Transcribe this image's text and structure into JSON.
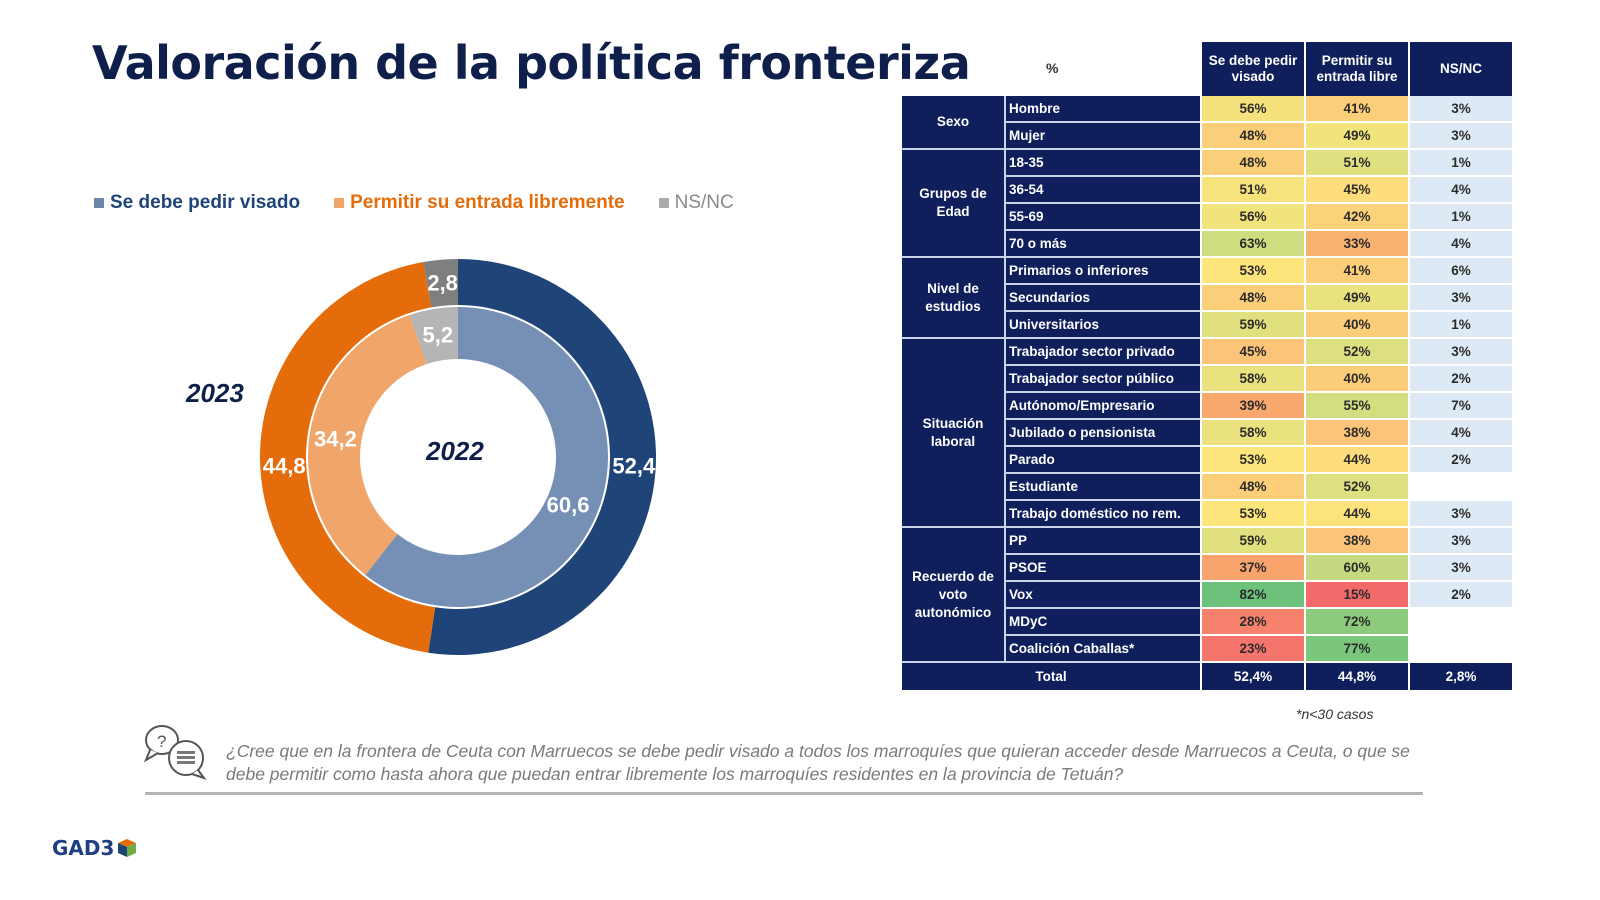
{
  "page": {
    "title": "Valoración de la política fronteriza",
    "footnote": "*n<30 casos",
    "question": "¿Cree que en la frontera de Ceuta con Marruecos se debe pedir visado a todos los marroquíes que quieran acceder desde Marruecos a Ceuta, o que se debe permitir como hasta ahora que puedan entrar libremente los marroquíes residentes en la provincia de Tetuán?",
    "logo_text": "GAD3",
    "question_icon": "chat-question-icon",
    "logo_icon": "cube-icon"
  },
  "legend": [
    {
      "label": "Se debe pedir visado",
      "color": "#1f4478"
    },
    {
      "label": "Permitir su entrada libremente",
      "color": "#e46c0a"
    },
    {
      "label": "NS/NC",
      "color": "#999999"
    }
  ],
  "chart_data": [
    {
      "type": "pie",
      "subtype": "double-donut",
      "title": "Valoración de la política fronteriza",
      "categories": [
        "Se debe pedir visado",
        "Permitir su entrada libremente",
        "NS/NC"
      ],
      "series": [
        {
          "name": "2023",
          "ring": "outer",
          "values": [
            52.4,
            44.8,
            2.8
          ],
          "labels": [
            "52,4",
            "44,8",
            "2,8"
          ],
          "colors": [
            "#1f4478",
            "#e46c0a",
            "#7f7f7f"
          ]
        },
        {
          "name": "2022",
          "ring": "inner",
          "values": [
            60.6,
            34.2,
            5.2
          ],
          "labels": [
            "60,6",
            "34,2",
            "5,2"
          ],
          "colors": [
            "#7690b5",
            "#f0a66a",
            "#b5b5b5"
          ]
        }
      ],
      "legend_position": "top-left",
      "ring_labels": {
        "outer": "2023",
        "inner": "2022"
      }
    },
    {
      "type": "table",
      "corner_label": "%",
      "columns": [
        "Se debe pedir visado",
        "Permitir su entrada libre",
        "NS/NC"
      ],
      "groups": [
        {
          "name": "Sexo",
          "rows": [
            {
              "label": "Hombre",
              "values": [
                "56%",
                "41%",
                "3%"
              ],
              "colors": [
                "#f5e27c",
                "#fbcf7a"
              ]
            },
            {
              "label": "Mujer",
              "values": [
                "48%",
                "49%",
                "3%"
              ],
              "colors": [
                "#fbcf7a",
                "#f1e47c"
              ]
            }
          ]
        },
        {
          "name": "Grupos de Edad",
          "rows": [
            {
              "label": "18-35",
              "values": [
                "48%",
                "51%",
                "1%"
              ],
              "colors": [
                "#fbcf7a",
                "#dfe07f"
              ]
            },
            {
              "label": "36-54",
              "values": [
                "51%",
                "45%",
                "4%"
              ],
              "colors": [
                "#f7e27c",
                "#fddd7c"
              ]
            },
            {
              "label": "55-69",
              "values": [
                "56%",
                "42%",
                "1%"
              ],
              "colors": [
                "#f1e47c",
                "#fbd27a"
              ]
            },
            {
              "label": "70 o más",
              "values": [
                "63%",
                "33%",
                "4%"
              ],
              "colors": [
                "#cfdd80",
                "#f9b170"
              ]
            }
          ]
        },
        {
          "name": "Nivel de estudios",
          "rows": [
            {
              "label": "Primarios o inferiores",
              "values": [
                "53%",
                "41%",
                "6%"
              ],
              "colors": [
                "#fde57c",
                "#fbcf7a"
              ]
            },
            {
              "label": "Secundarios",
              "values": [
                "48%",
                "49%",
                "3%"
              ],
              "colors": [
                "#fbcf7a",
                "#e9e27e"
              ]
            },
            {
              "label": "Universitarios",
              "values": [
                "59%",
                "40%",
                "1%"
              ],
              "colors": [
                "#e1e07f",
                "#fbcd79"
              ]
            }
          ]
        },
        {
          "name": "Situación laboral",
          "rows": [
            {
              "label": "Trabajador sector privado",
              "values": [
                "45%",
                "52%",
                "3%"
              ],
              "colors": [
                "#fbc478",
                "#dde07f"
              ]
            },
            {
              "label": "Trabajador sector público",
              "values": [
                "58%",
                "40%",
                "2%"
              ],
              "colors": [
                "#e9e27e",
                "#fbcd79"
              ]
            },
            {
              "label": "Autónomo/Empresario",
              "values": [
                "39%",
                "55%",
                "7%"
              ],
              "colors": [
                "#f9a86e",
                "#d3de80"
              ]
            },
            {
              "label": "Jubilado o pensionista",
              "values": [
                "58%",
                "38%",
                "4%"
              ],
              "colors": [
                "#e9e27e",
                "#fbc478"
              ]
            },
            {
              "label": "Parado",
              "values": [
                "53%",
                "44%",
                "2%"
              ],
              "colors": [
                "#fde57c",
                "#fddd7c"
              ]
            },
            {
              "label": "Estudiante",
              "values": [
                "48%",
                "52%",
                ""
              ],
              "colors": [
                "#fbcf7a",
                "#dde07f"
              ]
            },
            {
              "label": "Trabajo doméstico no rem.",
              "values": [
                "53%",
                "44%",
                "3%"
              ],
              "colors": [
                "#fde57c",
                "#fde37c"
              ]
            }
          ]
        },
        {
          "name": "Recuerdo de voto autonómico",
          "rows": [
            {
              "label": "PP",
              "values": [
                "59%",
                "38%",
                "3%"
              ],
              "colors": [
                "#e1e07f",
                "#fbc478"
              ]
            },
            {
              "label": "PSOE",
              "values": [
                "37%",
                "60%",
                "3%"
              ],
              "colors": [
                "#f9a36d",
                "#c5da80"
              ]
            },
            {
              "label": "Vox",
              "values": [
                "82%",
                "15%",
                "2%"
              ],
              "colors": [
                "#6cc27a",
                "#f36a6a"
              ]
            },
            {
              "label": "MDyC",
              "values": [
                "28%",
                "72%",
                ""
              ],
              "colors": [
                "#f6826e",
                "#8ccb7c"
              ]
            },
            {
              "label": "Coalición Caballas*",
              "values": [
                "23%",
                "77%",
                ""
              ],
              "colors": [
                "#f5746c",
                "#7ac67b"
              ]
            }
          ]
        }
      ],
      "total": {
        "label": "Total",
        "values": [
          "52,4%",
          "44,8%",
          "2,8%"
        ]
      }
    }
  ]
}
